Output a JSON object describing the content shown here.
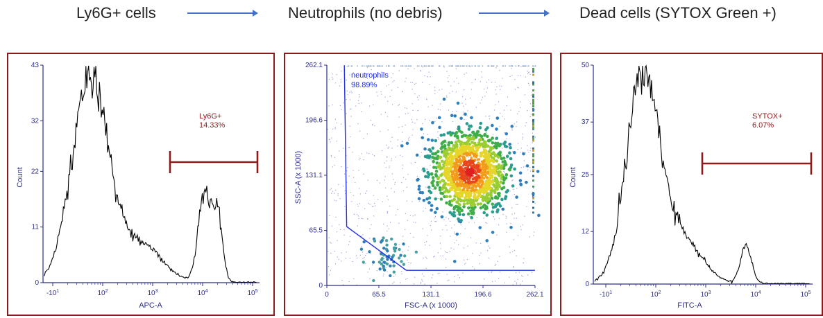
{
  "flow": {
    "steps": [
      "Ly6G+ cells",
      "Neutrophils (no debris)",
      "Dead cells (SYTOX Green +)"
    ]
  },
  "colors": {
    "panel_border": "#8b1a1a",
    "axis": "#2b2b8a",
    "arrow": "#4472c4",
    "gate_red": "#8b1a1a",
    "gate_blue": "#1f2ee0"
  },
  "chart_data": [
    {
      "type": "histogram",
      "title": "Ly6G+ cells",
      "xlabel": "APC-A",
      "ylabel": "Count",
      "x_scale": "biexponential",
      "x_tick_labels": [
        "-10^1",
        "10^2",
        "10^3",
        "10^4",
        "10^5"
      ],
      "y_ticks": [
        0,
        11,
        22,
        32,
        43
      ],
      "ylim": [
        0,
        43
      ],
      "peaks": [
        {
          "x_approx": 100,
          "count": 43
        },
        {
          "x_approx": 20000,
          "count": 19
        }
      ],
      "gate": {
        "name": "Ly6G+",
        "percent": "14.33%"
      }
    },
    {
      "type": "scatter",
      "title": "Neutrophils (no debris)",
      "xlabel": "FSC-A (x 1000)",
      "ylabel": "SSC-A (x 1000)",
      "x_ticks": [
        0,
        65.5,
        131.1,
        196.6,
        262.1
      ],
      "y_ticks": [
        0,
        65.5,
        131.1,
        196.6,
        262.1
      ],
      "xlim": [
        0,
        262.1
      ],
      "ylim": [
        0,
        262.1
      ],
      "main_population": {
        "fsc_center": 180,
        "ssc_center": 135
      },
      "debris_population": {
        "fsc_center": 75,
        "ssc_center": 35
      },
      "gate": {
        "name": "neutrophils",
        "percent": "98.89%",
        "polygon": [
          [
            22,
            262
          ],
          [
            25,
            70
          ],
          [
            100,
            18
          ],
          [
            262,
            18
          ]
        ]
      }
    },
    {
      "type": "histogram",
      "title": "Dead cells (SYTOX Green +)",
      "xlabel": "FITC-A",
      "ylabel": "Count",
      "x_scale": "biexponential",
      "x_tick_labels": [
        "-10^1",
        "10^2",
        "10^3",
        "10^4",
        "10^5"
      ],
      "y_ticks": [
        0,
        12,
        25,
        37,
        50
      ],
      "ylim": [
        0,
        50
      ],
      "peaks": [
        {
          "x_approx": 120,
          "count": 50
        },
        {
          "x_approx": 12000,
          "count": 9
        }
      ],
      "gate": {
        "name": "SYTOX+",
        "percent": "6.07%"
      }
    }
  ]
}
